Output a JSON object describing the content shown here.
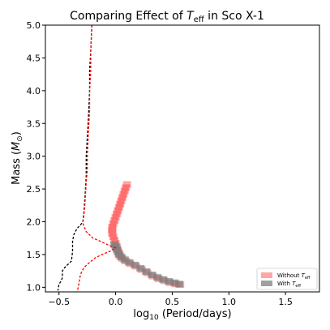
{
  "chart_data": {
    "type": "line",
    "title": "Comparing Effect of T_eff in Sco X-1",
    "title_parts": {
      "prefix": "Comparing Effect of ",
      "var": "T",
      "sub": "eff",
      "suffix": " in Sco X-1"
    },
    "xlabel": "log10 (Period/days)",
    "xlabel_parts": {
      "log": "log",
      "base": "10",
      "rest": " (Period/days)"
    },
    "ylabel": "Mass (M⊙)",
    "ylabel_parts": {
      "prefix": "Mass (",
      "var": "M",
      "sub": "⊙",
      "suffix": ")"
    },
    "xlim": [
      -0.62,
      1.8
    ],
    "ylim": [
      0.93,
      5.0
    ],
    "grid": false,
    "legend_placement": "lower-right",
    "xticks": [
      {
        "value": -0.5,
        "label": "−0.5"
      },
      {
        "value": 0.0,
        "label": "0.0"
      },
      {
        "value": 0.5,
        "label": "0.5"
      },
      {
        "value": 1.0,
        "label": "1.0"
      },
      {
        "value": 1.5,
        "label": "1.5"
      }
    ],
    "yticks": [
      {
        "value": 1.0,
        "label": "1.0"
      },
      {
        "value": 1.5,
        "label": "1.5"
      },
      {
        "value": 2.0,
        "label": "2.0"
      },
      {
        "value": 2.5,
        "label": "2.5"
      },
      {
        "value": 3.0,
        "label": "3.0"
      },
      {
        "value": 3.5,
        "label": "3.5"
      },
      {
        "value": 4.0,
        "label": "4.0"
      },
      {
        "value": 4.5,
        "label": "4.5"
      },
      {
        "value": 5.0,
        "label": "5.0"
      }
    ],
    "series": [
      {
        "kind": "line",
        "color": "#000000",
        "dashed": true,
        "points": [
          [
            -0.21,
            5.0
          ],
          [
            -0.22,
            4.6
          ],
          [
            -0.23,
            4.3
          ],
          [
            -0.23,
            4.0
          ],
          [
            -0.24,
            3.6
          ],
          [
            -0.25,
            3.3
          ],
          [
            -0.26,
            3.0
          ],
          [
            -0.26,
            2.7
          ],
          [
            -0.27,
            2.4
          ],
          [
            -0.28,
            2.15
          ],
          [
            -0.29,
            2.0
          ],
          [
            -0.31,
            1.95
          ],
          [
            -0.34,
            1.9
          ],
          [
            -0.37,
            1.8
          ],
          [
            -0.38,
            1.7
          ],
          [
            -0.38,
            1.55
          ],
          [
            -0.39,
            1.4
          ],
          [
            -0.42,
            1.35
          ],
          [
            -0.45,
            1.3
          ],
          [
            -0.47,
            1.25
          ],
          [
            -0.47,
            1.15
          ],
          [
            -0.48,
            1.1
          ],
          [
            -0.5,
            1.05
          ],
          [
            -0.51,
            0.95
          ]
        ]
      },
      {
        "kind": "line",
        "color": "#ff0000",
        "dashed": true,
        "points": [
          [
            -0.21,
            5.0
          ],
          [
            -0.22,
            4.6
          ],
          [
            -0.22,
            4.3
          ],
          [
            -0.23,
            4.0
          ],
          [
            -0.23,
            3.7
          ],
          [
            -0.24,
            3.4
          ],
          [
            -0.25,
            3.0
          ],
          [
            -0.25,
            2.8
          ],
          [
            -0.26,
            2.6
          ],
          [
            -0.27,
            2.3
          ],
          [
            -0.28,
            2.1
          ],
          [
            -0.29,
            1.98
          ],
          [
            -0.26,
            1.85
          ],
          [
            -0.2,
            1.75
          ],
          [
            -0.13,
            1.7
          ],
          [
            -0.07,
            1.65
          ],
          [
            0.0,
            1.6
          ],
          [
            -0.05,
            1.55
          ],
          [
            -0.12,
            1.5
          ],
          [
            -0.18,
            1.45
          ],
          [
            -0.23,
            1.38
          ],
          [
            -0.28,
            1.3
          ],
          [
            -0.31,
            1.2
          ],
          [
            -0.32,
            1.1
          ],
          [
            -0.33,
            1.0
          ],
          [
            -0.34,
            0.93
          ]
        ]
      },
      {
        "kind": "band",
        "name": "Without T_eff",
        "color": "#ff0000",
        "opacity": 0.35,
        "points": [
          [
            0.1,
            2.57
          ],
          [
            0.09,
            2.52
          ],
          [
            0.08,
            2.47
          ],
          [
            0.07,
            2.42
          ],
          [
            0.06,
            2.37
          ],
          [
            0.05,
            2.32
          ],
          [
            0.04,
            2.27
          ],
          [
            0.03,
            2.22
          ],
          [
            0.02,
            2.17
          ],
          [
            0.01,
            2.12
          ],
          [
            0.0,
            2.07
          ],
          [
            -0.01,
            2.02
          ],
          [
            -0.02,
            1.97
          ],
          [
            -0.03,
            1.92
          ],
          [
            -0.03,
            1.87
          ],
          [
            -0.03,
            1.82
          ],
          [
            -0.02,
            1.77
          ],
          [
            -0.01,
            1.72
          ],
          [
            0.0,
            1.67
          ],
          [
            0.01,
            1.62
          ],
          [
            0.02,
            1.57
          ],
          [
            0.03,
            1.52
          ],
          [
            0.04,
            1.48
          ],
          [
            0.06,
            1.44
          ],
          [
            0.09,
            1.4
          ],
          [
            0.13,
            1.36
          ],
          [
            0.18,
            1.32
          ],
          [
            0.23,
            1.27
          ],
          [
            0.28,
            1.22
          ],
          [
            0.33,
            1.17
          ],
          [
            0.38,
            1.13
          ],
          [
            0.43,
            1.1
          ],
          [
            0.48,
            1.07
          ],
          [
            0.53,
            1.05
          ],
          [
            0.57,
            1.04
          ]
        ]
      },
      {
        "kind": "band",
        "name": "With T_eff",
        "color": "#808080",
        "opacity": 0.75,
        "points": [
          [
            -0.01,
            1.65
          ],
          [
            0.0,
            1.62
          ],
          [
            0.01,
            1.58
          ],
          [
            0.02,
            1.54
          ],
          [
            0.03,
            1.5
          ],
          [
            0.05,
            1.46
          ],
          [
            0.08,
            1.42
          ],
          [
            0.12,
            1.38
          ],
          [
            0.17,
            1.34
          ],
          [
            0.22,
            1.29
          ],
          [
            0.27,
            1.24
          ],
          [
            0.32,
            1.19
          ],
          [
            0.37,
            1.15
          ],
          [
            0.42,
            1.12
          ],
          [
            0.47,
            1.09
          ],
          [
            0.52,
            1.07
          ],
          [
            0.56,
            1.05
          ]
        ]
      }
    ],
    "legend": [
      {
        "label": "Without T_eff",
        "var": "T",
        "sub": "eff",
        "prefix": "Without ",
        "color": "#ff0000",
        "opacity": 0.35
      },
      {
        "label": "With T_eff",
        "var": "T",
        "sub": "eff",
        "prefix": "With ",
        "color": "#808080",
        "opacity": 0.75
      }
    ]
  }
}
